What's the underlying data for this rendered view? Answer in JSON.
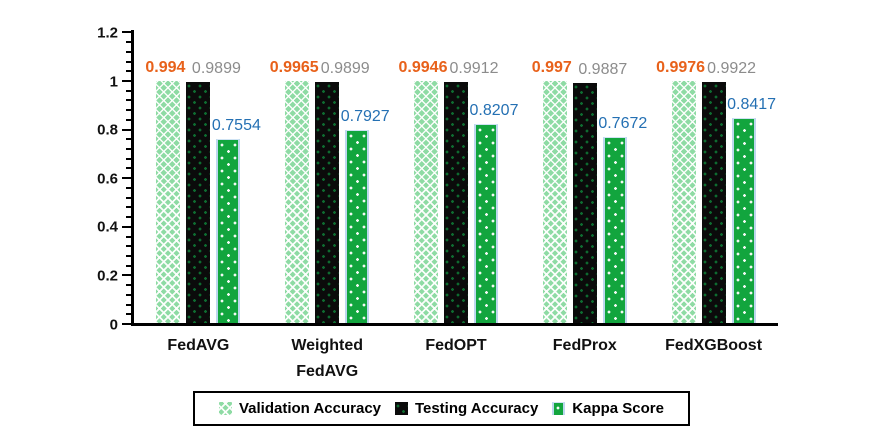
{
  "chart_data": {
    "type": "bar",
    "title": "",
    "xlabel": "",
    "ylabel": "",
    "categories": [
      "FedAVG",
      "Weighted\nFedAVG",
      "FedOPT",
      "FedProx",
      "FedXGBoost"
    ],
    "series": [
      {
        "name": "Validation Accuracy",
        "values": [
          0.994,
          0.9965,
          0.9946,
          0.997,
          0.9976
        ],
        "labels": [
          "0.994",
          "0.9965",
          "0.9946",
          "0.997",
          "0.9976"
        ],
        "label_color": "#E8611A",
        "swatch": "light-green-lattice-pattern"
      },
      {
        "name": "Testing Accuracy",
        "values": [
          0.9899,
          0.9899,
          0.9912,
          0.9887,
          0.9922
        ],
        "labels": [
          "0.9899",
          "0.9899",
          "0.9912",
          "0.9887",
          "0.9922"
        ],
        "label_color": "#8C8C8C",
        "swatch": "black-green-dots-pattern"
      },
      {
        "name": "Kappa Score",
        "values": [
          0.7554,
          0.7927,
          0.8207,
          0.7672,
          0.8417
        ],
        "labels": [
          "0.7554",
          "0.7927",
          "0.8207",
          "0.7672",
          "0.8417"
        ],
        "label_color": "#2470B3",
        "swatch": "green-white-dots-pattern"
      }
    ],
    "ylim": [
      0,
      1.2
    ],
    "ytick_values": [
      0,
      0.2,
      0.4,
      0.6,
      0.8,
      1,
      1.2
    ],
    "yticks": [
      "0",
      "0.2",
      "0.4",
      "0.6",
      "0.8",
      "1",
      "1.2"
    ],
    "minor_tick_step": 0.04,
    "grid": false,
    "legend_position": "bottom",
    "colors": {
      "validation_fill": "#8EDBA4",
      "testing_fill": "#0b0b0b",
      "testing_dot": "#0E6B30",
      "kappa_fill": "#12A53E",
      "kappa_edge": "#BDD7EE",
      "label_orange": "#E8611A",
      "label_gray": "#8C8C8C",
      "label_blue": "#2470B3",
      "axis": "#000000"
    }
  }
}
